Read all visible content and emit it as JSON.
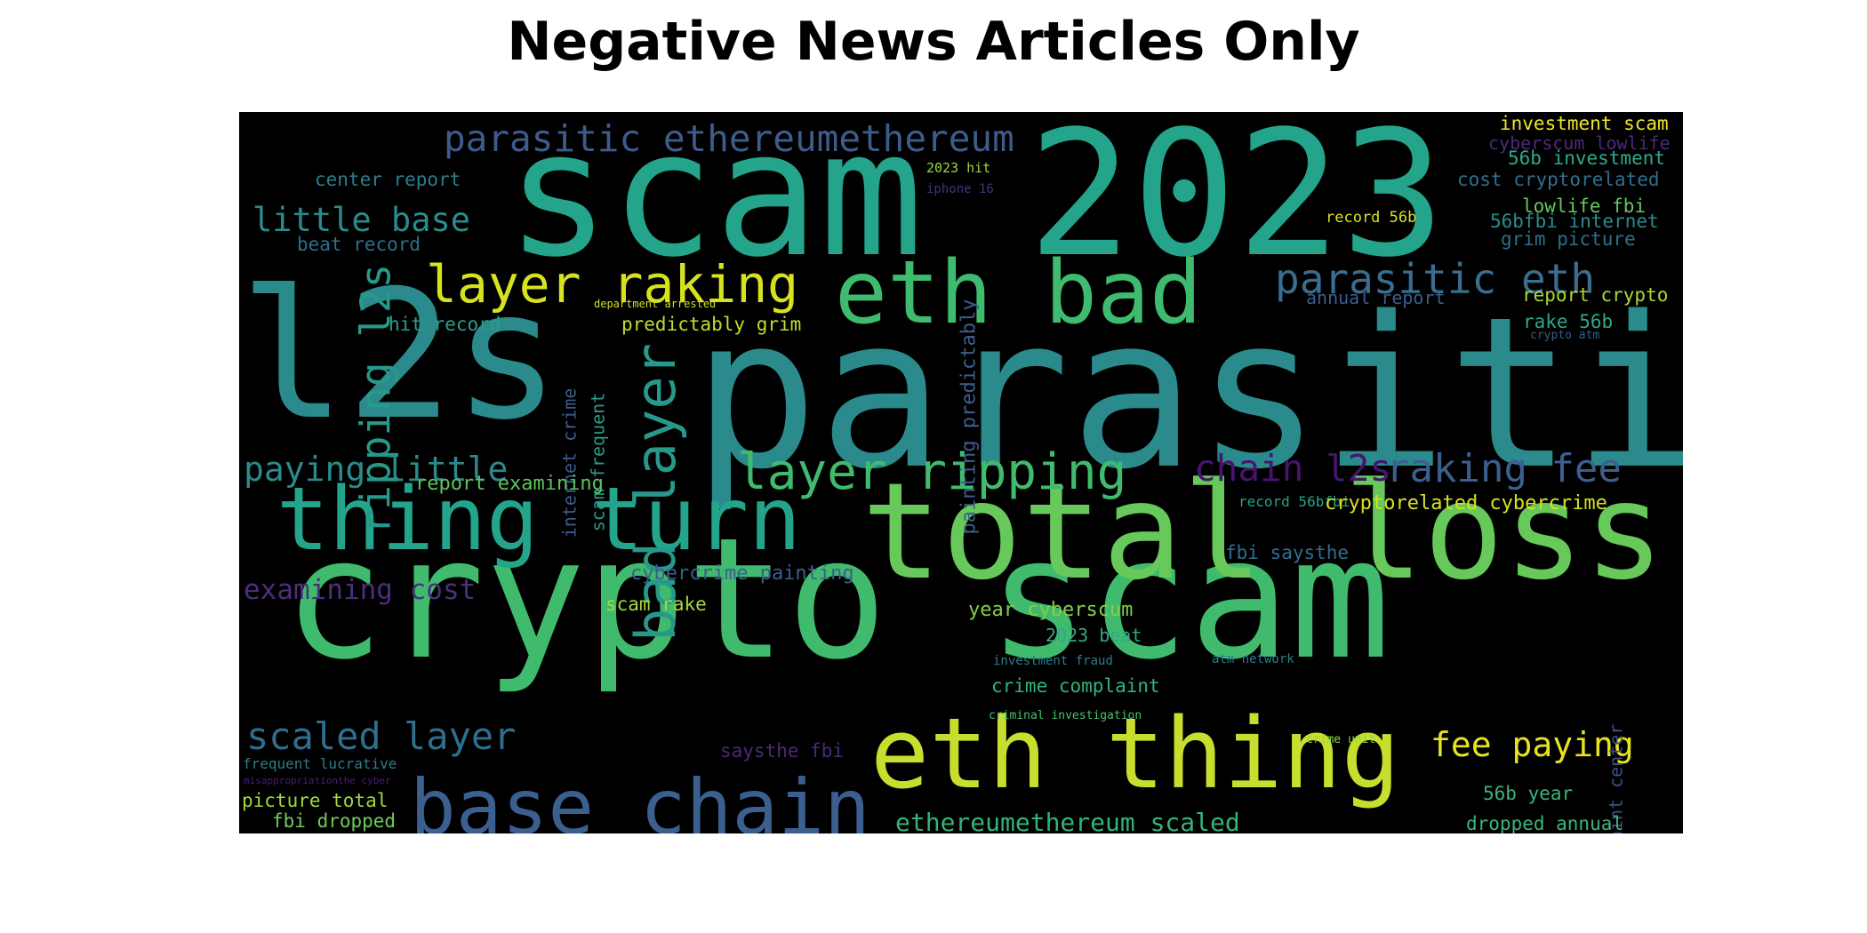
{
  "chart_data": {
    "type": "wordcloud",
    "title": "Negative News Articles Only",
    "words": [
      {
        "text": "parasitic",
        "color": "#2a8a8c"
      },
      {
        "text": "scam 2023",
        "color": "#23a48b"
      },
      {
        "text": "crypto scam",
        "color": "#40bb6e"
      },
      {
        "text": "l2s",
        "color": "#2a8a8c"
      },
      {
        "text": "total loss",
        "color": "#66c95a"
      },
      {
        "text": "eth thing",
        "color": "#c8de2e"
      },
      {
        "text": "thing turn",
        "color": "#23a48b"
      },
      {
        "text": "eth bad",
        "color": "#3fbb6f"
      },
      {
        "text": "base chain",
        "color": "#3b5f8e"
      },
      {
        "text": "layer ripping",
        "color": "#40bb6e"
      },
      {
        "text": "layer raking",
        "color": "#d7e21f"
      },
      {
        "text": "parasitic ethereumethereum",
        "color": "#3c5c8b"
      },
      {
        "text": "parasitic eth",
        "color": "#3a6d8e"
      },
      {
        "text": "raking fee",
        "color": "#3b5f8e"
      },
      {
        "text": "chain l2s",
        "color": "#46156c"
      },
      {
        "text": "bad layer",
        "color": "#27998a"
      },
      {
        "text": "ripping l2s",
        "color": "#27998a"
      },
      {
        "text": "little base",
        "color": "#2c8a8c"
      },
      {
        "text": "paying little",
        "color": "#2c8a8c"
      },
      {
        "text": "examining cost",
        "color": "#4a2f7a"
      },
      {
        "text": "scaled layer",
        "color": "#2e6e8e"
      },
      {
        "text": "fee paying",
        "color": "#e7e320"
      },
      {
        "text": "ethereumethereum scaled",
        "color": "#32b47a"
      },
      {
        "text": "investment scam",
        "color": "#eee52c"
      },
      {
        "text": "cyberscum lowlife",
        "color": "#4a2a7a"
      },
      {
        "text": "56b investment",
        "color": "#2fa88a"
      },
      {
        "text": "cost cryptorelated",
        "color": "#2f6f8e"
      },
      {
        "text": "lowlife fbi",
        "color": "#63c75d"
      },
      {
        "text": "56bfbi internet",
        "color": "#2c8a8c"
      },
      {
        "text": "grim picture",
        "color": "#2f6e8e"
      },
      {
        "text": "report crypto",
        "color": "#aad733"
      },
      {
        "text": "annual report",
        "color": "#3b5f8e"
      },
      {
        "text": "rake 56b",
        "color": "#2fa88a"
      },
      {
        "text": "crypto atm",
        "color": "#335f8d"
      },
      {
        "text": "record 56b",
        "color": "#d9e021"
      },
      {
        "text": "2023 hit",
        "color": "#9dd93b"
      },
      {
        "text": "iphone 16",
        "color": "#4a2f7a"
      },
      {
        "text": "painting predictably",
        "color": "#3b5f8e"
      },
      {
        "text": "center report",
        "color": "#2c7d8e"
      },
      {
        "text": "beat record",
        "color": "#2e6e8e"
      },
      {
        "text": "department arrested",
        "color": "#d4df28"
      },
      {
        "text": "hit record",
        "color": "#25a08b"
      },
      {
        "text": "predictably grim",
        "color": "#c5dc2d"
      },
      {
        "text": "internet crime",
        "color": "#3c5c8b"
      },
      {
        "text": "scam frequent",
        "color": "#2a9a87"
      },
      {
        "text": "report examining",
        "color": "#5ec35f"
      },
      {
        "text": "record 56bfbi",
        "color": "#22a58a"
      },
      {
        "text": "cryptorelated cybercrime",
        "color": "#d9e021"
      },
      {
        "text": "fbi saysthe",
        "color": "#2f6e8e"
      },
      {
        "text": "cybercrime painting",
        "color": "#3b5f8e"
      },
      {
        "text": "scam rake",
        "color": "#a3d83a"
      },
      {
        "text": "year cyberscum",
        "color": "#83cf48"
      },
      {
        "text": "2023 beat",
        "color": "#2ea88a"
      },
      {
        "text": "investment fraud",
        "color": "#2e7e8d"
      },
      {
        "text": "atm network",
        "color": "#2c7d8e"
      },
      {
        "text": "crime complaint",
        "color": "#32b47a"
      },
      {
        "text": "criminal investigation",
        "color": "#47c16e"
      },
      {
        "text": "crime unit",
        "color": "#8fd744"
      },
      {
        "text": "complaint center",
        "color": "#3b4f8a"
      },
      {
        "text": "saysthe fbi",
        "color": "#4a2a7a"
      },
      {
        "text": "frequent lucrative",
        "color": "#2c7d8e"
      },
      {
        "text": "misappropriationthe cyber",
        "color": "#4a1e72"
      },
      {
        "text": "picture total",
        "color": "#9ed93a"
      },
      {
        "text": "fbi dropped",
        "color": "#6ccd5a"
      },
      {
        "text": "56b year",
        "color": "#3ab67a"
      },
      {
        "text": "dropped annual",
        "color": "#3ab67a"
      }
    ]
  }
}
